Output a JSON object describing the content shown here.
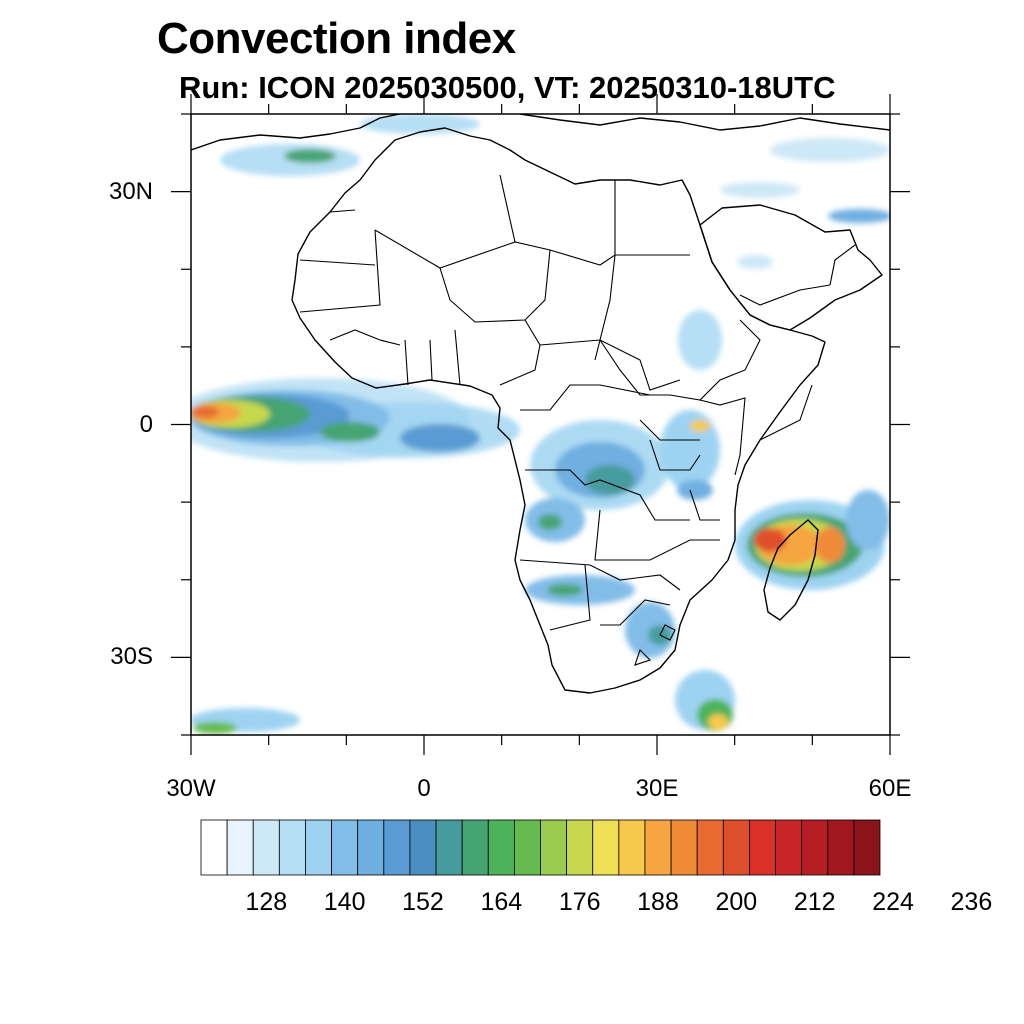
{
  "title": "Convection index",
  "subtitle": "Run: ICON 2025030500,  VT: 20250310-18UTC",
  "map": {
    "lon_range": [
      -30,
      60
    ],
    "lat_range": [
      -40,
      40
    ],
    "lat_ticks": [
      {
        "label": "30N",
        "lat": 30
      },
      {
        "label": "0",
        "lat": 0
      },
      {
        "label": "30S",
        "lat": -30
      }
    ],
    "lon_ticks": [
      {
        "label": "30W",
        "lon": -30
      },
      {
        "label": "0",
        "lon": 0
      },
      {
        "label": "30E",
        "lon": 30
      },
      {
        "label": "60E",
        "lon": 60
      }
    ]
  },
  "colorbar": {
    "labels": [
      "128",
      "140",
      "152",
      "164",
      "176",
      "188",
      "200",
      "212",
      "224",
      "236"
    ],
    "colors": [
      "#ffffff",
      "#e8f4fb",
      "#cde8f6",
      "#b6def4",
      "#9dd3f1",
      "#82bde8",
      "#6fafe0",
      "#5a9bd3",
      "#4a8fbf",
      "#469c9d",
      "#46a473",
      "#4db35a",
      "#66bb4e",
      "#9bcb4f",
      "#c7d84e",
      "#eedf55",
      "#f7c84c",
      "#f5a641",
      "#ef8a37",
      "#e86a31",
      "#e04f2b",
      "#d93028",
      "#c92427",
      "#b61d24",
      "#a3181f",
      "#8a1419"
    ]
  },
  "colors": {
    "land": "#ffffff",
    "coast": "#000000"
  }
}
